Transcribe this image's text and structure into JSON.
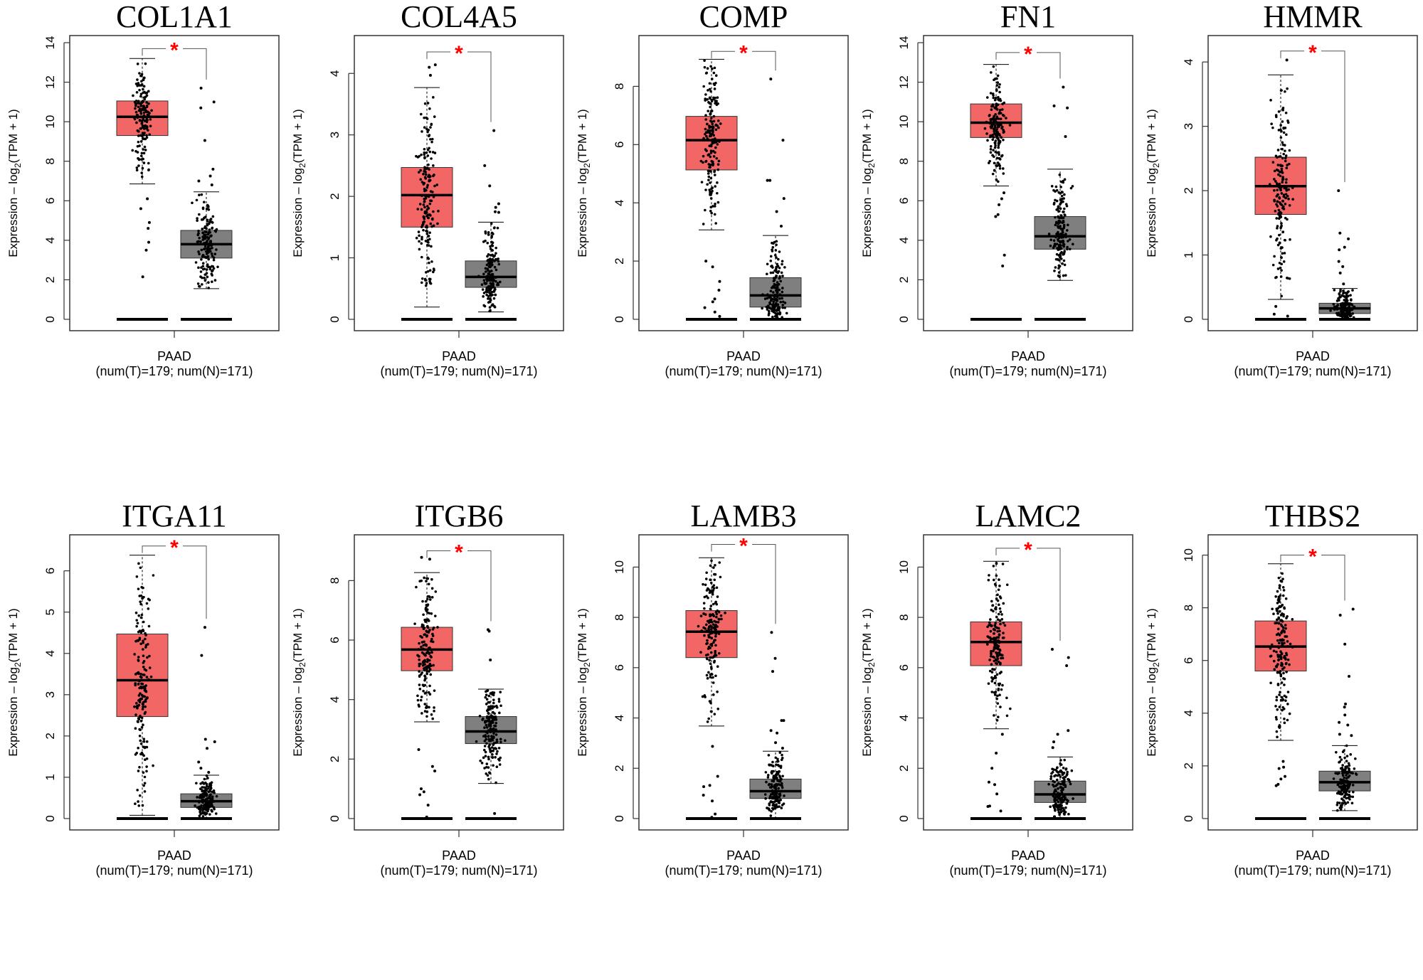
{
  "chart_data": [
    {
      "type": "box",
      "title": "COL1A1",
      "ylabel": "Expression - log2(TPM + 1)",
      "xlabel": "PAAD",
      "xsub": "(num(T)=179; num(N)=171)",
      "ylim": [
        0,
        14
      ],
      "yticks": [
        0,
        2,
        4,
        6,
        8,
        10,
        12,
        14
      ],
      "significance": "*",
      "tumor": {
        "q1": 9.3,
        "median": 10.25,
        "q3": 11.05,
        "whisker_low": 6.85,
        "whisker_high": 13.2,
        "outliers": [
          6.1,
          5.6,
          4.9,
          4.6,
          3.9,
          3.5,
          2.15
        ],
        "n": 179
      },
      "normal": {
        "q1": 3.1,
        "median": 3.8,
        "q3": 4.5,
        "whisker_low": 1.55,
        "whisker_high": 6.45,
        "outliers": [
          11.7,
          11.0,
          10.7,
          9.05,
          7.6,
          7.25,
          7.0,
          6.8
        ],
        "n": 171
      },
      "bracket_top": 13.7
    },
    {
      "type": "box",
      "title": "COL4A5",
      "ylabel": "Expression - log2(TPM + 1)",
      "xlabel": "PAAD",
      "xsub": "(num(T)=179; num(N)=171)",
      "ylim": [
        0,
        4.5
      ],
      "yticks": [
        0,
        1,
        2,
        3,
        4
      ],
      "significance": "*",
      "tumor": {
        "q1": 1.5,
        "median": 2.02,
        "q3": 2.47,
        "whisker_low": 0.2,
        "whisker_high": 3.77,
        "outliers": [
          4.14,
          4.1,
          3.97
        ],
        "n": 179
      },
      "normal": {
        "q1": 0.52,
        "median": 0.69,
        "q3": 0.95,
        "whisker_low": 0.12,
        "whisker_high": 1.58,
        "outliers": [
          3.07,
          2.5,
          2.17,
          1.88,
          1.82,
          1.75,
          1.74
        ],
        "n": 171
      },
      "bracket_top": 4.35
    },
    {
      "type": "box",
      "title": "COMP",
      "ylabel": "Expression - log2(TPM + 1)",
      "xlabel": "PAAD",
      "xsub": "(num(T)=179; num(N)=171)",
      "ylim": [
        0,
        9.5
      ],
      "yticks": [
        0,
        2,
        4,
        6,
        8
      ],
      "significance": "*",
      "tumor": {
        "q1": 5.13,
        "median": 6.15,
        "q3": 6.97,
        "whisker_low": 3.07,
        "whisker_high": 8.93,
        "outliers": [
          2.0,
          1.8,
          1.3,
          1.0,
          0.7,
          0.6,
          0.4,
          0.25,
          0.1
        ],
        "n": 179
      },
      "normal": {
        "q1": 0.42,
        "median": 0.82,
        "q3": 1.43,
        "whisker_low": 0.0,
        "whisker_high": 2.88,
        "outliers": [
          8.25,
          6.15,
          4.77,
          4.77,
          4.15,
          3.7,
          3.2
        ],
        "n": 171
      },
      "bracket_top": 9.2
    },
    {
      "type": "box",
      "title": "FN1",
      "ylabel": "Expression - log2(TPM + 1)",
      "xlabel": "PAAD",
      "xsub": "(num(T)=179; num(N)=171)",
      "ylim": [
        0,
        14
      ],
      "yticks": [
        0,
        2,
        4,
        6,
        8,
        10,
        12,
        14
      ],
      "significance": "*",
      "tumor": {
        "q1": 9.2,
        "median": 9.95,
        "q3": 10.9,
        "whisker_low": 6.75,
        "whisker_high": 12.9,
        "outliers": [
          6.4,
          6.1,
          5.8,
          5.3,
          5.2,
          3.25,
          2.7
        ],
        "n": 179
      },
      "normal": {
        "q1": 3.55,
        "median": 4.2,
        "q3": 5.2,
        "whisker_low": 1.97,
        "whisker_high": 7.6,
        "outliers": [
          11.75,
          10.8,
          10.7,
          9.25
        ],
        "n": 171
      },
      "bracket_top": 13.5
    },
    {
      "type": "box",
      "title": "HMMR",
      "ylabel": "Expression - log2(TPM + 1)",
      "xlabel": "PAAD",
      "xsub": "(num(T)=179; num(N)=171)",
      "ylim": [
        0,
        4.3
      ],
      "yticks": [
        0,
        1,
        2,
        3,
        4
      ],
      "significance": "*",
      "tumor": {
        "q1": 1.63,
        "median": 2.07,
        "q3": 2.52,
        "whisker_low": 0.31,
        "whisker_high": 3.8,
        "outliers": [
          4.03,
          0.2,
          0.08,
          0.05
        ],
        "n": 179
      },
      "normal": {
        "q1": 0.09,
        "median": 0.17,
        "q3": 0.25,
        "whisker_low": 0.0,
        "whisker_high": 0.48,
        "outliers": [
          2.0,
          1.34,
          1.25,
          1.12,
          1.08,
          0.9,
          0.82,
          0.72,
          0.55
        ],
        "n": 171
      },
      "bracket_top": 4.17
    },
    {
      "type": "box",
      "title": "ITGA11",
      "ylabel": "Expression - log2(TPM + 1)",
      "xlabel": "PAAD",
      "xsub": "(num(T)=179; num(N)=171)",
      "ylim": [
        0,
        6.7
      ],
      "yticks": [
        0,
        1,
        2,
        3,
        4,
        5,
        6
      ],
      "significance": "*",
      "tumor": {
        "q1": 2.47,
        "median": 3.35,
        "q3": 4.47,
        "whisker_low": 0.08,
        "whisker_high": 6.38,
        "outliers": [],
        "n": 179
      },
      "normal": {
        "q1": 0.27,
        "median": 0.42,
        "q3": 0.6,
        "whisker_low": 0.0,
        "whisker_high": 1.05,
        "outliers": [
          4.63,
          3.95,
          1.92,
          1.86,
          1.7,
          1.37,
          1.22,
          1.12
        ],
        "n": 171
      },
      "bracket_top": 6.6
    },
    {
      "type": "box",
      "title": "ITGB6",
      "ylabel": "Expression - log2(TPM + 1)",
      "xlabel": "PAAD",
      "xsub": "(num(T)=179; num(N)=171)",
      "ylim": [
        0,
        9.3
      ],
      "yticks": [
        0,
        2,
        4,
        6,
        8
      ],
      "significance": "*",
      "tumor": {
        "q1": 4.97,
        "median": 5.68,
        "q3": 6.43,
        "whisker_low": 3.25,
        "whisker_high": 8.27,
        "outliers": [
          8.78,
          8.72,
          2.32,
          1.75,
          1.6,
          1.0,
          0.9,
          0.8,
          0.45,
          0.05
        ],
        "n": 179
      },
      "normal": {
        "q1": 2.52,
        "median": 2.93,
        "q3": 3.43,
        "whisker_low": 1.18,
        "whisker_high": 4.35,
        "outliers": [
          6.35,
          6.3,
          5.33,
          0.17
        ],
        "n": 171
      },
      "bracket_top": 9.0
    },
    {
      "type": "box",
      "title": "LAMB3",
      "ylabel": "Expression - log2(TPM + 1)",
      "xlabel": "PAAD",
      "xsub": "(num(T)=179; num(N)=171)",
      "ylim": [
        0,
        11
      ],
      "yticks": [
        0,
        2,
        4,
        6,
        8,
        10
      ],
      "significance": "*",
      "tumor": {
        "q1": 6.4,
        "median": 7.43,
        "q3": 8.27,
        "whisker_low": 3.68,
        "whisker_high": 10.37,
        "outliers": [
          2.87,
          1.68,
          1.32,
          1.27,
          0.93,
          0.7,
          0.18,
          0.05
        ],
        "n": 179
      },
      "normal": {
        "q1": 0.8,
        "median": 1.09,
        "q3": 1.57,
        "whisker_low": 0.0,
        "whisker_high": 2.68,
        "outliers": [
          7.4,
          6.37,
          5.85,
          3.9,
          3.9,
          3.5,
          3.4,
          3.02,
          2.8
        ],
        "n": 171
      },
      "bracket_top": 10.9
    },
    {
      "type": "box",
      "title": "LAMC2",
      "ylabel": "Expression - log2(TPM + 1)",
      "xlabel": "PAAD",
      "xsub": "(num(T)=179; num(N)=171)",
      "ylim": [
        0,
        11
      ],
      "yticks": [
        0,
        2,
        4,
        6,
        8,
        10
      ],
      "significance": "*",
      "tumor": {
        "q1": 6.08,
        "median": 7.02,
        "q3": 7.82,
        "whisker_low": 3.57,
        "whisker_high": 10.23,
        "outliers": [
          3.35,
          2.6,
          2.0,
          1.45,
          1.35,
          0.98,
          0.5,
          0.48,
          0.3
        ],
        "n": 179
      },
      "normal": {
        "q1": 0.64,
        "median": 0.96,
        "q3": 1.49,
        "whisker_low": 0.0,
        "whisker_high": 2.45,
        "outliers": [
          6.73,
          6.4,
          6.08,
          3.5,
          3.35,
          3.05,
          2.82
        ],
        "n": 171
      },
      "bracket_top": 10.75
    },
    {
      "type": "box",
      "title": "THBS2",
      "ylabel": "Expression - log2(TPM + 1)",
      "xlabel": "PAAD",
      "xsub": "(num(T)=179; num(N)=171)",
      "ylim": [
        0,
        10.5
      ],
      "yticks": [
        0,
        2,
        4,
        6,
        8,
        10
      ],
      "significance": "*",
      "tumor": {
        "q1": 5.6,
        "median": 6.53,
        "q3": 7.5,
        "whisker_low": 2.97,
        "whisker_high": 9.67,
        "outliers": [
          2.17,
          1.95,
          1.9,
          1.6,
          1.5,
          1.3,
          1.25
        ],
        "n": 179
      },
      "normal": {
        "q1": 1.05,
        "median": 1.38,
        "q3": 1.8,
        "whisker_low": 0.3,
        "whisker_high": 2.77,
        "outliers": [
          7.95,
          7.72,
          6.62,
          5.4,
          4.35,
          4.23,
          3.93,
          3.65,
          3.55,
          3.2,
          3.15
        ],
        "n": 171
      },
      "bracket_top": 10.0
    }
  ],
  "colors": {
    "tumor": "#f36666",
    "normal": "#7f7f7f",
    "significance": "#ff0000",
    "axis": "#333333",
    "points": "#000000"
  }
}
